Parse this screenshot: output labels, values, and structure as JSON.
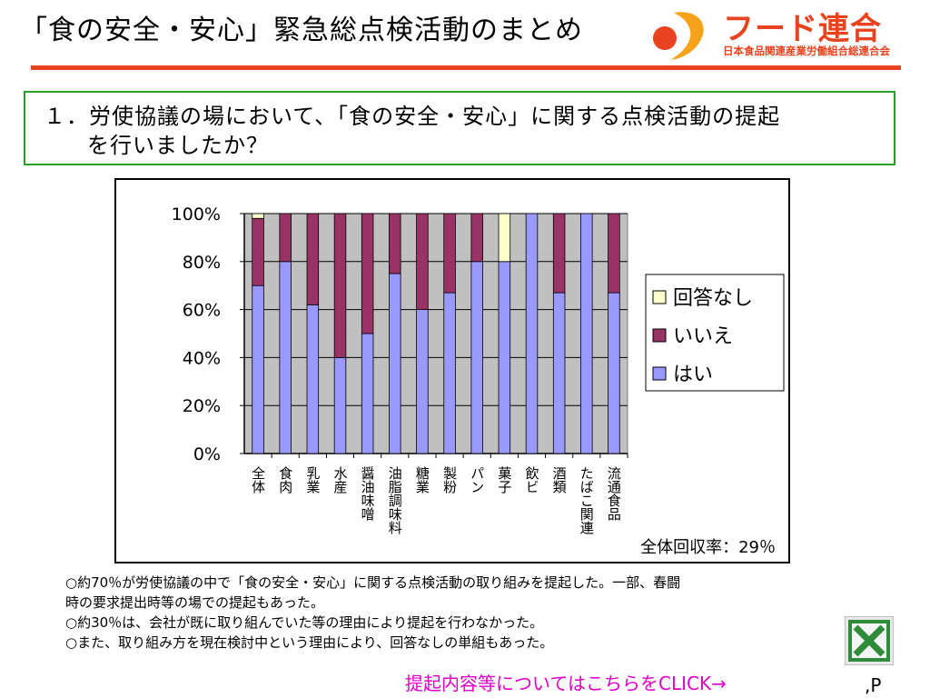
{
  "header": {
    "title": "「食の安全・安心」緊急総点検活動のまとめ",
    "logo_name": "フード連合",
    "logo_subtitle": "日本食品関連産業労働組合総連合会",
    "accent_color": "#e8431e"
  },
  "question": {
    "line1": "１．労使協議の場において、「食の安全・安心」に関する点検活動の提起",
    "line2": "を行いましたか？",
    "border_color": "#2c9c2c"
  },
  "chart_data": {
    "type": "bar",
    "stacked": true,
    "normalized": true,
    "categories": [
      "全体",
      "食肉",
      "乳業",
      "水産",
      "醤油味噌",
      "油脂調味料",
      "糖業",
      "製粉",
      "パン",
      "菓子",
      "飲ビ",
      "酒類",
      "たばこ関連",
      "流通食品"
    ],
    "series": [
      {
        "name": "はい",
        "color": "#9999ff",
        "values": [
          70,
          80,
          62,
          40,
          50,
          75,
          60,
          67,
          80,
          80,
          100,
          67,
          100,
          67
        ]
      },
      {
        "name": "いいえ",
        "color": "#993366",
        "values": [
          28,
          20,
          38,
          60,
          50,
          25,
          40,
          33,
          20,
          0,
          0,
          33,
          0,
          33
        ]
      },
      {
        "name": "回答なし",
        "color": "#ffffcc",
        "values": [
          2,
          0,
          0,
          0,
          0,
          0,
          0,
          0,
          0,
          20,
          0,
          0,
          0,
          0
        ]
      }
    ],
    "ylim": [
      0,
      100
    ],
    "y_ticks": [
      "0%",
      "20%",
      "40%",
      "60%",
      "80%",
      "100%"
    ],
    "grid": true,
    "plot_background": "#c0c0c0",
    "legend_position": "right",
    "legend": [
      "回答なし",
      "いいえ",
      "はい"
    ],
    "annotation": "全体回収率：29％"
  },
  "notes": [
    "○約70％が労使協議の中で「食の安全・安心」に関する点検活動の取り組みを提起した。一部、春闘",
    "時の要求提出時等の場での提起もあった。",
    "○約30％は、会社が既に取り組んでいた等の理由により提起を行わなかった。",
    "○また、取り組み方を現在検討中という理由により、回答なしの単組もあった。"
  ],
  "link": {
    "label": "提起内容等についてはこちらをCLICK→",
    "color": "#e000c8"
  },
  "excel_icon": "excel-icon",
  "page_ref": ",P"
}
